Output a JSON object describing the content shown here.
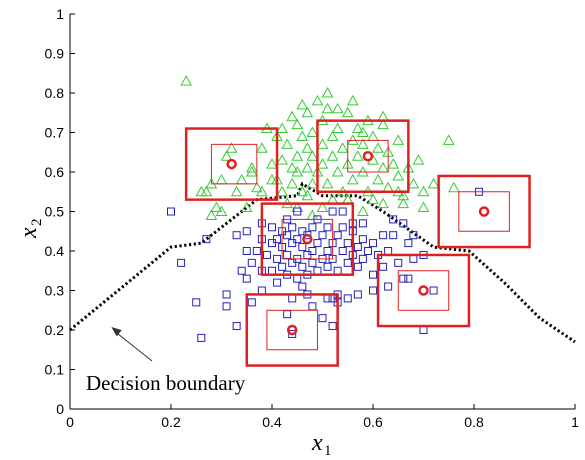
{
  "chart_data": {
    "type": "scatter",
    "xlim": [
      0,
      1
    ],
    "ylim": [
      0,
      1
    ],
    "x_ticks": [
      "0",
      "0.2",
      "0.4",
      "0.6",
      "0.8",
      "1"
    ],
    "y_ticks": [
      "0",
      "0.1",
      "0.2",
      "0.3",
      "0.4",
      "0.5",
      "0.6",
      "0.7",
      "0.8",
      "0.9",
      "1"
    ],
    "xlabel": {
      "main": "x",
      "sub": "1"
    },
    "ylabel": {
      "main": "x",
      "sub": "2"
    },
    "grid": false,
    "colors": {
      "triangles": "#33cc33",
      "squares": "#2222bb",
      "boxes": "#e02020",
      "centers": "#e02020",
      "boundary": "#000000",
      "arrow": "#333333"
    },
    "series": [
      {
        "marker": "triangle",
        "points": [
          [
            0.23,
            0.83
          ],
          [
            0.26,
            0.55
          ],
          [
            0.27,
            0.55
          ],
          [
            0.28,
            0.57
          ],
          [
            0.3,
            0.58
          ],
          [
            0.31,
            0.64
          ],
          [
            0.32,
            0.66
          ],
          [
            0.33,
            0.55
          ],
          [
            0.34,
            0.58
          ],
          [
            0.36,
            0.61
          ],
          [
            0.37,
            0.56
          ],
          [
            0.38,
            0.66
          ],
          [
            0.39,
            0.71
          ],
          [
            0.4,
            0.62
          ],
          [
            0.41,
            0.69
          ],
          [
            0.28,
            0.49
          ],
          [
            0.29,
            0.51
          ],
          [
            0.41,
            0.58
          ],
          [
            0.42,
            0.63
          ],
          [
            0.42,
            0.55
          ],
          [
            0.43,
            0.67
          ],
          [
            0.44,
            0.61
          ],
          [
            0.44,
            0.57
          ],
          [
            0.45,
            0.72
          ],
          [
            0.45,
            0.64
          ],
          [
            0.45,
            0.6
          ],
          [
            0.46,
            0.69
          ],
          [
            0.46,
            0.55
          ],
          [
            0.47,
            0.66
          ],
          [
            0.47,
            0.61
          ],
          [
            0.47,
            0.75
          ],
          [
            0.48,
            0.57
          ],
          [
            0.48,
            0.7
          ],
          [
            0.48,
            0.64
          ],
          [
            0.49,
            0.6
          ],
          [
            0.49,
            0.78
          ],
          [
            0.5,
            0.73
          ],
          [
            0.5,
            0.67
          ],
          [
            0.5,
            0.62
          ],
          [
            0.51,
            0.57
          ],
          [
            0.51,
            0.76
          ],
          [
            0.52,
            0.69
          ],
          [
            0.52,
            0.64
          ],
          [
            0.53,
            0.6
          ],
          [
            0.53,
            0.71
          ],
          [
            0.54,
            0.66
          ],
          [
            0.54,
            0.55
          ],
          [
            0.55,
            0.62
          ],
          [
            0.55,
            0.75
          ],
          [
            0.56,
            0.68
          ],
          [
            0.56,
            0.58
          ],
          [
            0.57,
            0.64
          ],
          [
            0.57,
            0.71
          ],
          [
            0.58,
            0.6
          ],
          [
            0.58,
            0.67
          ],
          [
            0.59,
            0.55
          ],
          [
            0.59,
            0.73
          ],
          [
            0.6,
            0.63
          ],
          [
            0.6,
            0.69
          ],
          [
            0.61,
            0.58
          ],
          [
            0.61,
            0.66
          ],
          [
            0.62,
            0.61
          ],
          [
            0.62,
            0.72
          ],
          [
            0.63,
            0.56
          ],
          [
            0.63,
            0.65
          ],
          [
            0.64,
            0.62
          ],
          [
            0.65,
            0.59
          ],
          [
            0.65,
            0.68
          ],
          [
            0.66,
            0.54
          ],
          [
            0.67,
            0.61
          ],
          [
            0.68,
            0.57
          ],
          [
            0.69,
            0.63
          ],
          [
            0.7,
            0.55
          ],
          [
            0.52,
            0.53
          ],
          [
            0.55,
            0.53
          ],
          [
            0.6,
            0.53
          ],
          [
            0.62,
            0.52
          ],
          [
            0.66,
            0.52
          ],
          [
            0.43,
            0.52
          ],
          [
            0.47,
            0.54
          ],
          [
            0.51,
            0.8
          ],
          [
            0.46,
            0.77
          ],
          [
            0.53,
            0.76
          ],
          [
            0.56,
            0.78
          ],
          [
            0.44,
            0.74
          ],
          [
            0.42,
            0.71
          ],
          [
            0.76,
            0.56
          ],
          [
            0.7,
            0.51
          ],
          [
            0.72,
            0.57
          ],
          [
            0.35,
            0.51
          ],
          [
            0.3,
            0.5
          ],
          [
            0.75,
            0.68
          ],
          [
            0.62,
            0.74
          ],
          [
            0.48,
            0.49
          ],
          [
            0.58,
            0.5
          ],
          [
            0.65,
            0.55
          ],
          [
            0.55,
            0.53
          ],
          [
            0.45,
            0.51
          ],
          [
            0.4,
            0.58
          ],
          [
            0.5,
            0.51
          ],
          [
            0.38,
            0.55
          ],
          [
            0.36,
            0.6
          ],
          [
            0.58,
            0.7
          ]
        ]
      },
      {
        "marker": "square",
        "points": [
          [
            0.2,
            0.5
          ],
          [
            0.22,
            0.37
          ],
          [
            0.31,
            0.26
          ],
          [
            0.34,
            0.35
          ],
          [
            0.35,
            0.4
          ],
          [
            0.35,
            0.45
          ],
          [
            0.36,
            0.37
          ],
          [
            0.37,
            0.4
          ],
          [
            0.38,
            0.3
          ],
          [
            0.38,
            0.35
          ],
          [
            0.38,
            0.43
          ],
          [
            0.38,
            0.47
          ],
          [
            0.39,
            0.39
          ],
          [
            0.4,
            0.35
          ],
          [
            0.4,
            0.42
          ],
          [
            0.4,
            0.46
          ],
          [
            0.41,
            0.32
          ],
          [
            0.41,
            0.38
          ],
          [
            0.41,
            0.43
          ],
          [
            0.42,
            0.36
          ],
          [
            0.42,
            0.41
          ],
          [
            0.42,
            0.45
          ],
          [
            0.43,
            0.34
          ],
          [
            0.43,
            0.39
          ],
          [
            0.43,
            0.44
          ],
          [
            0.43,
            0.48
          ],
          [
            0.44,
            0.37
          ],
          [
            0.44,
            0.42
          ],
          [
            0.44,
            0.46
          ],
          [
            0.45,
            0.33
          ],
          [
            0.45,
            0.38
          ],
          [
            0.45,
            0.43
          ],
          [
            0.45,
            0.5
          ],
          [
            0.46,
            0.36
          ],
          [
            0.46,
            0.41
          ],
          [
            0.46,
            0.45
          ],
          [
            0.47,
            0.39
          ],
          [
            0.47,
            0.44
          ],
          [
            0.47,
            0.34
          ],
          [
            0.48,
            0.4
          ],
          [
            0.48,
            0.46
          ],
          [
            0.48,
            0.37
          ],
          [
            0.49,
            0.42
          ],
          [
            0.49,
            0.35
          ],
          [
            0.49,
            0.48
          ],
          [
            0.5,
            0.38
          ],
          [
            0.5,
            0.44
          ],
          [
            0.51,
            0.4
          ],
          [
            0.51,
            0.36
          ],
          [
            0.51,
            0.46
          ],
          [
            0.52,
            0.42
          ],
          [
            0.52,
            0.38
          ],
          [
            0.52,
            0.5
          ],
          [
            0.53,
            0.44
          ],
          [
            0.53,
            0.35
          ],
          [
            0.54,
            0.4
          ],
          [
            0.54,
            0.46
          ],
          [
            0.55,
            0.37
          ],
          [
            0.55,
            0.42
          ],
          [
            0.56,
            0.39
          ],
          [
            0.56,
            0.45
          ],
          [
            0.57,
            0.41
          ],
          [
            0.57,
            0.36
          ],
          [
            0.58,
            0.43
          ],
          [
            0.58,
            0.38
          ],
          [
            0.59,
            0.4
          ],
          [
            0.6,
            0.42
          ],
          [
            0.61,
            0.39
          ],
          [
            0.62,
            0.36
          ],
          [
            0.63,
            0.4
          ],
          [
            0.64,
            0.44
          ],
          [
            0.65,
            0.37
          ],
          [
            0.67,
            0.33
          ],
          [
            0.68,
            0.44
          ],
          [
            0.66,
            0.47
          ],
          [
            0.7,
            0.39
          ],
          [
            0.72,
            0.3
          ],
          [
            0.7,
            0.2
          ],
          [
            0.81,
            0.55
          ],
          [
            0.27,
            0.43
          ],
          [
            0.25,
            0.27
          ],
          [
            0.26,
            0.18
          ],
          [
            0.31,
            0.29
          ],
          [
            0.33,
            0.21
          ],
          [
            0.44,
            0.19
          ],
          [
            0.5,
            0.23
          ],
          [
            0.51,
            0.28
          ],
          [
            0.52,
            0.28
          ],
          [
            0.53,
            0.29
          ],
          [
            0.53,
            0.27
          ],
          [
            0.52,
            0.21
          ],
          [
            0.55,
            0.28
          ],
          [
            0.48,
            0.26
          ],
          [
            0.47,
            0.29
          ],
          [
            0.6,
            0.3
          ],
          [
            0.63,
            0.31
          ],
          [
            0.66,
            0.33
          ],
          [
            0.35,
            0.33
          ],
          [
            0.36,
            0.27
          ],
          [
            0.56,
            0.47
          ],
          [
            0.54,
            0.5
          ],
          [
            0.44,
            0.28
          ],
          [
            0.62,
            0.44
          ],
          [
            0.64,
            0.48
          ],
          [
            0.58,
            0.47
          ],
          [
            0.6,
            0.34
          ],
          [
            0.67,
            0.42
          ],
          [
            0.43,
            0.24
          ],
          [
            0.46,
            0.31
          ],
          [
            0.57,
            0.29
          ],
          [
            0.68,
            0.38
          ],
          [
            0.33,
            0.44
          ]
        ]
      }
    ],
    "boxes": [
      {
        "center": [
          0.32,
          0.62
        ],
        "outer": [
          0.23,
          0.41,
          0.53,
          0.71
        ],
        "inner": [
          0.28,
          0.37,
          0.57,
          0.67
        ]
      },
      {
        "center": [
          0.59,
          0.64
        ],
        "outer": [
          0.49,
          0.67,
          0.55,
          0.73
        ],
        "inner": [
          0.55,
          0.63,
          0.6,
          0.68
        ]
      },
      {
        "center": [
          0.47,
          0.43
        ],
        "outer": [
          0.38,
          0.56,
          0.34,
          0.52
        ],
        "inner": [
          0.42,
          0.52,
          0.38,
          0.48
        ]
      },
      {
        "center": [
          0.82,
          0.5
        ],
        "outer": [
          0.73,
          0.91,
          0.41,
          0.59
        ],
        "inner": [
          0.77,
          0.87,
          0.45,
          0.55
        ]
      },
      {
        "center": [
          0.7,
          0.3
        ],
        "outer": [
          0.61,
          0.79,
          0.21,
          0.39
        ],
        "inner": [
          0.65,
          0.75,
          0.25,
          0.35
        ]
      },
      {
        "center": [
          0.44,
          0.2
        ],
        "outer": [
          0.35,
          0.53,
          0.11,
          0.29
        ],
        "inner": [
          0.39,
          0.49,
          0.15,
          0.25
        ]
      }
    ],
    "boundary": [
      [
        0,
        0.2
      ],
      [
        0.2,
        0.41
      ],
      [
        0.26,
        0.42
      ],
      [
        0.37,
        0.53
      ],
      [
        0.45,
        0.54
      ],
      [
        0.46,
        0.57
      ],
      [
        0.5,
        0.54
      ],
      [
        0.57,
        0.54
      ],
      [
        0.62,
        0.5
      ],
      [
        0.72,
        0.41
      ],
      [
        0.79,
        0.4
      ],
      [
        0.86,
        0.32
      ],
      [
        0.93,
        0.23
      ],
      [
        1,
        0.17
      ]
    ],
    "annotations": [
      {
        "text": "Decision boundary",
        "points_to": [
          0.08,
          0.21
        ]
      }
    ]
  }
}
